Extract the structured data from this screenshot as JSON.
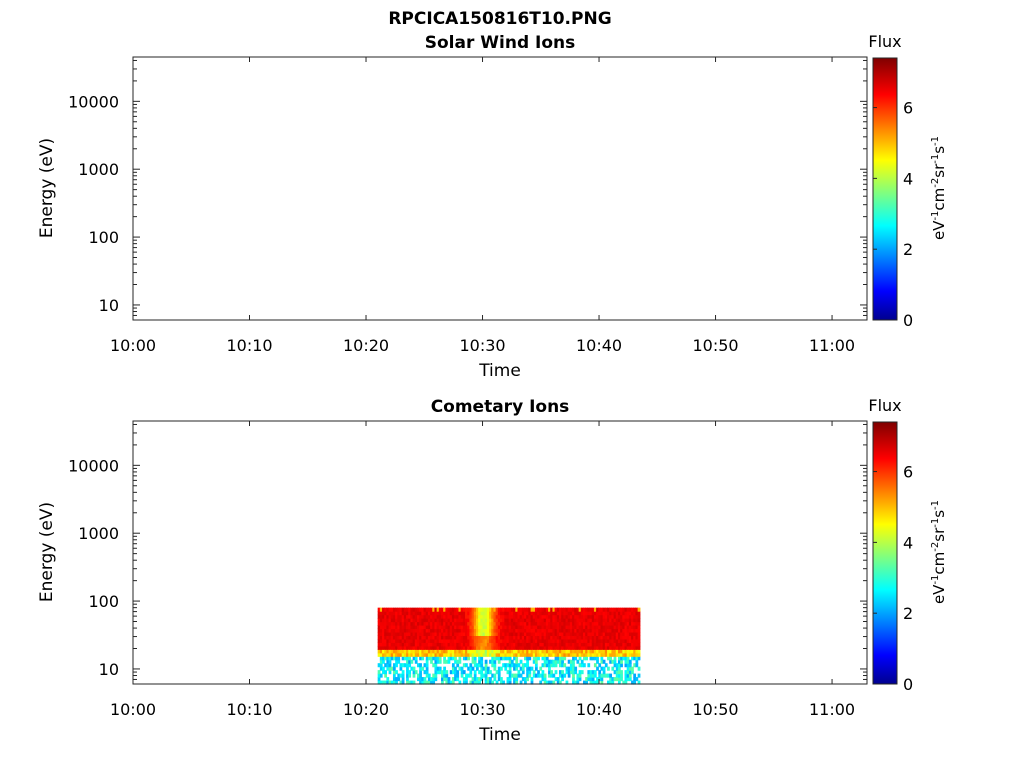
{
  "figure_title": "RPCICA150816T10.PNG",
  "chart_data": [
    {
      "type": "heatmap",
      "title": "Solar Wind Ions",
      "xlabel": "Time",
      "ylabel": "Energy (eV)",
      "x_ticks": [
        "10:00",
        "10:10",
        "10:20",
        "10:30",
        "10:40",
        "10:50",
        "11:00"
      ],
      "x_range": [
        "10:00",
        "11:03"
      ],
      "y_scale": "log",
      "y_ticks": [
        10,
        100,
        1000,
        10000
      ],
      "y_range": [
        6,
        45000
      ],
      "colorbar": {
        "label": "Flux",
        "unit": "eV-1cm-2sr-1s-1",
        "ticks": [
          0,
          2,
          4,
          6
        ],
        "range": [
          0,
          7.4
        ],
        "colormap": "jet"
      },
      "data_region": null
    },
    {
      "type": "heatmap",
      "title": "Cometary Ions",
      "xlabel": "Time",
      "ylabel": "Energy (eV)",
      "x_ticks": [
        "10:00",
        "10:10",
        "10:20",
        "10:30",
        "10:40",
        "10:50",
        "11:00"
      ],
      "x_range": [
        "10:00",
        "11:03"
      ],
      "y_scale": "log",
      "y_ticks": [
        10,
        100,
        1000,
        10000
      ],
      "y_range": [
        6,
        45000
      ],
      "colorbar": {
        "label": "Flux",
        "unit": "eV-1cm-2sr-1s-1",
        "ticks": [
          0,
          2,
          4,
          6
        ],
        "range": [
          0,
          7.4
        ],
        "colormap": "jet"
      },
      "data_region": {
        "time_start": "10:21",
        "time_end": "10:43.5",
        "energy_low": 6,
        "energy_high": 80,
        "dip_time": "10:30",
        "band_flux": {
          "above_20_eV": 6.8,
          "15_to_20_eV": 5.0,
          "below_15_eV": 2.8
        }
      }
    }
  ]
}
